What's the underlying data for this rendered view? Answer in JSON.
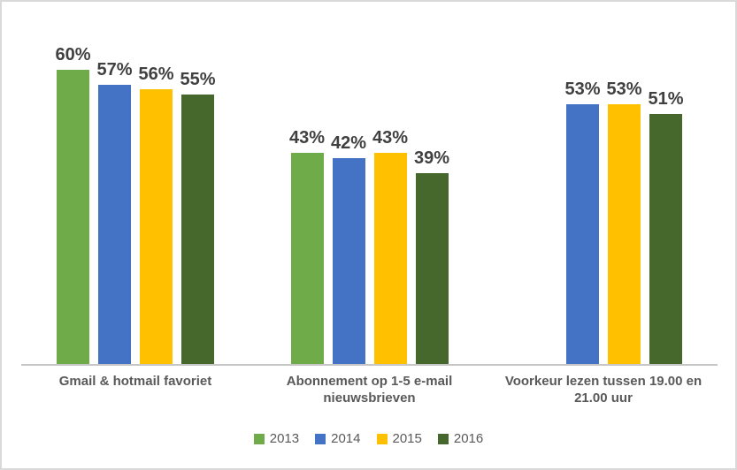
{
  "chart": {
    "background_color": "#FFFFFF",
    "border_color": "#D9D9D9",
    "axis_line_color": "#C6C6C6",
    "value_label_color": "#404040",
    "category_label_color": "#595959",
    "legend_text_color": "#595959"
  },
  "chart_data": {
    "type": "bar",
    "title": "",
    "xlabel": "",
    "ylabel": "",
    "ylim": [
      0,
      74
    ],
    "grid": false,
    "y_axis_visible": false,
    "data_labels": true,
    "value_suffix": "%",
    "legend_position": "bottom",
    "categories": [
      "Gmail & hotmail favoriet",
      "Abonnement op 1-5 e-mail nieuwsbrieven",
      "Voorkeur lezen tussen 19.00 en 21.00 uur"
    ],
    "series": [
      {
        "name": "2013",
        "color": "#6FAC49",
        "values": [
          60,
          43,
          null
        ]
      },
      {
        "name": "2014",
        "color": "#4472C4",
        "values": [
          57,
          42,
          53
        ]
      },
      {
        "name": "2015",
        "color": "#FFC000",
        "values": [
          56,
          43,
          53
        ]
      },
      {
        "name": "2016",
        "color": "#46682C",
        "values": [
          55,
          39,
          51
        ]
      }
    ]
  }
}
